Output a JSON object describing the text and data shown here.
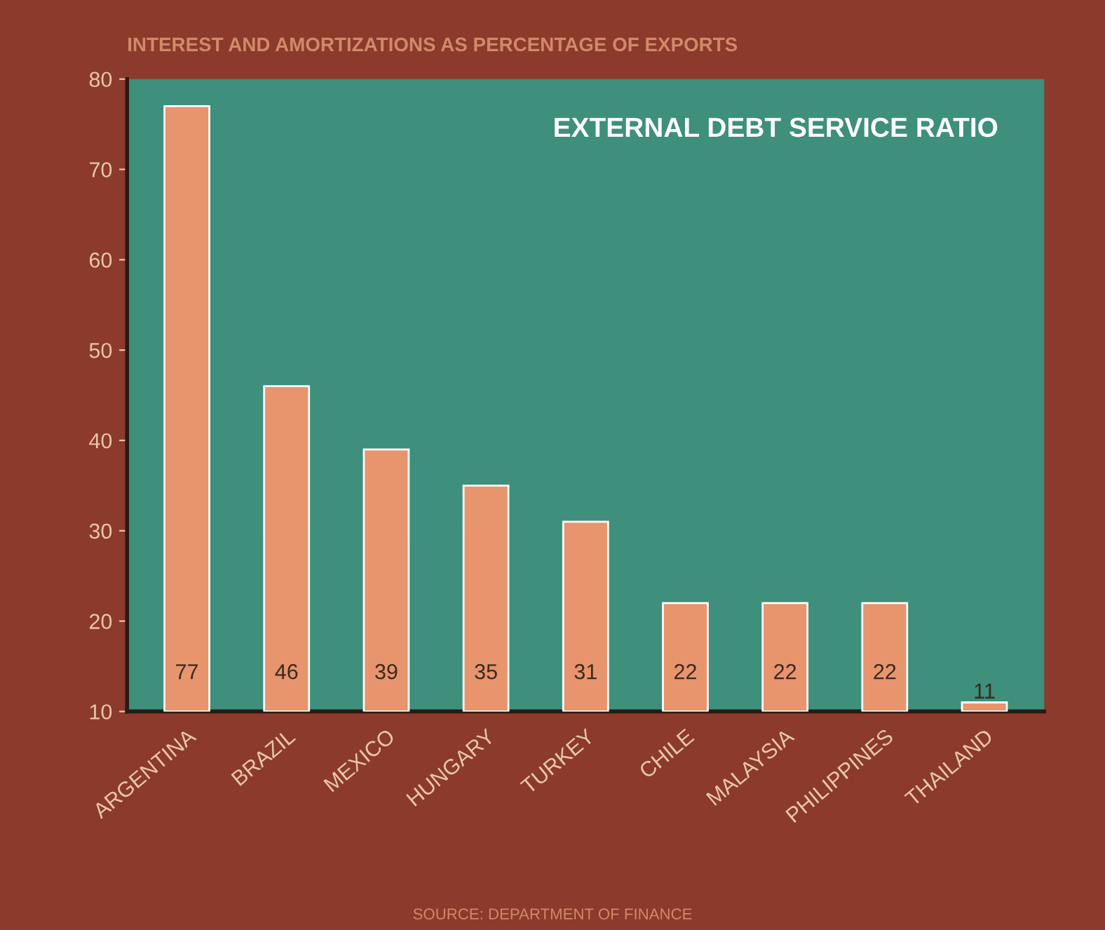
{
  "chart_data": {
    "type": "bar",
    "title": "INTEREST AND AMORTIZATIONS AS PERCENTAGE OF EXPORTS",
    "annotations": [
      "EXTERNAL DEBT SERVICE RATIO",
      "SOURCE: DEPARTMENT OF FINANCE"
    ],
    "categories": [
      "ARGENTINA",
      "BRAZIL",
      "MEXICO",
      "HUNGARY",
      "TURKEY",
      "CHILE",
      "MALAYSIA",
      "PHILIPPINES",
      "THAILAND"
    ],
    "values": [
      77,
      46,
      39,
      35,
      31,
      22,
      22,
      22,
      11
    ],
    "color": "#e8946c",
    "ylim": [
      10,
      80
    ],
    "yticks": [
      10,
      20,
      30,
      40,
      50,
      60,
      70,
      80
    ],
    "data_labels": true,
    "grid": false,
    "legend": false
  }
}
